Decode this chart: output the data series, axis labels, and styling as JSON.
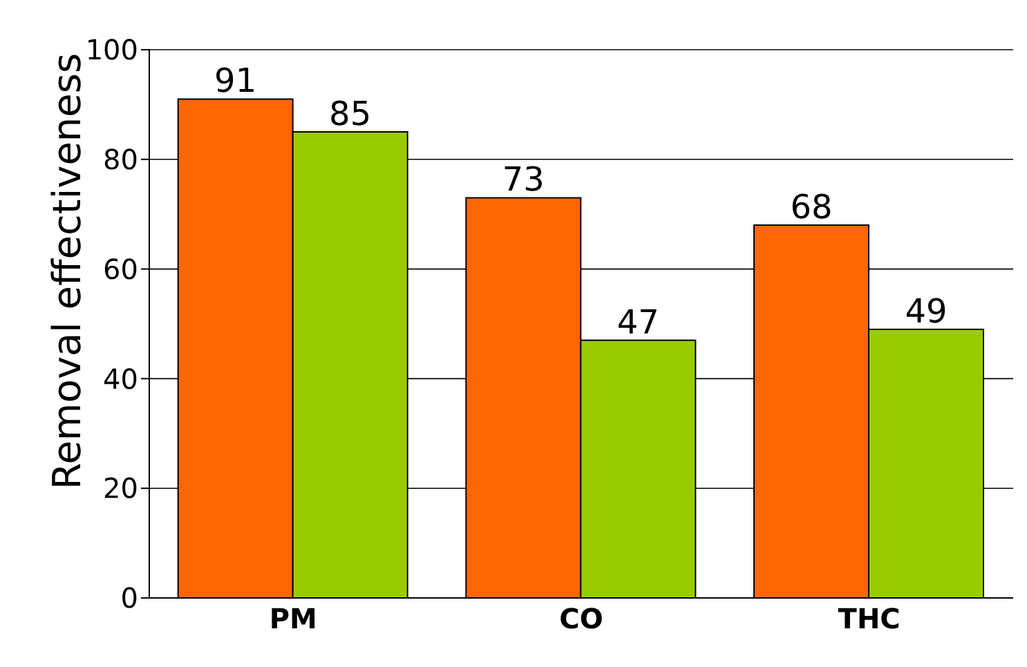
{
  "chart_data": {
    "type": "bar",
    "ylabel": "Removal effectiveness",
    "categories": [
      "PM",
      "CO",
      "THC"
    ],
    "series": [
      {
        "color": "#ff6600",
        "values": [
          91,
          73,
          68
        ]
      },
      {
        "color": "#99cc00",
        "values": [
          85,
          47,
          49
        ]
      }
    ],
    "ylim": [
      0,
      100
    ],
    "yticks": [
      0,
      20,
      40,
      60,
      80,
      100
    ],
    "grid": "y",
    "data_labels": true
  }
}
